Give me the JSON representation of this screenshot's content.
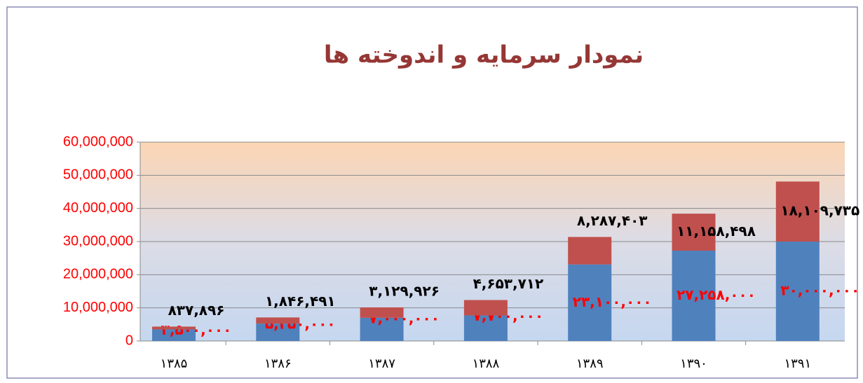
{
  "chart_data": {
    "type": "stacked_bar",
    "title": "نمودار سرمایه و اندوخته ها",
    "categories": [
      "۱۳۸۵",
      "۱۳۸۶",
      "۱۳۸۷",
      "۱۳۸۸",
      "۱۳۸۹",
      "۱۳۹۰",
      "۱۳۹۱"
    ],
    "series": [
      {
        "color": "#4f81bd",
        "label_color": "#ff0000",
        "values": [
          3500000,
          5250000,
          7000000,
          7700000,
          23100000,
          27258000,
          30000000
        ],
        "value_labels": [
          "۳,۵۰۰,۰۰۰",
          "۵,۲۵۰,۰۰۰",
          "۷,۰۰۰,۰۰۰",
          "۷,۷۰۰,۰۰۰",
          "۲۳,۱۰۰,۰۰۰",
          "۲۷,۲۵۸,۰۰۰",
          "۳۰,۰۰۰,۰۰۰"
        ]
      },
      {
        "color": "#c0504d",
        "label_color": "#000000",
        "values": [
          837896,
          1846491,
          3129926,
          4653712,
          8287403,
          11158498,
          18109735
        ],
        "value_labels": [
          "۸۳۷,۸۹۶",
          "۱,۸۴۶,۴۹۱",
          "۳,۱۲۹,۹۲۶",
          "۴,۶۵۳,۷۱۲",
          "۸,۲۸۷,۴۰۳",
          "۱۱,۱۵۸,۴۹۸",
          "۱۸,۱۰۹,۷۳۵"
        ]
      }
    ],
    "ylim": [
      0,
      60000000
    ],
    "yticks": [
      0,
      {
        "value": 10000000,
        "label": "10,000,000"
      },
      {
        "value": 20000000,
        "label": "20,000,000"
      },
      {
        "value": 30000000,
        "label": "30,000,000"
      },
      {
        "value": 40000000,
        "label": "40,000,000"
      },
      {
        "value": 50000000,
        "label": "50,000,000"
      },
      {
        "value": 60000000,
        "label": "60,000,000"
      }
    ],
    "grid": true
  }
}
